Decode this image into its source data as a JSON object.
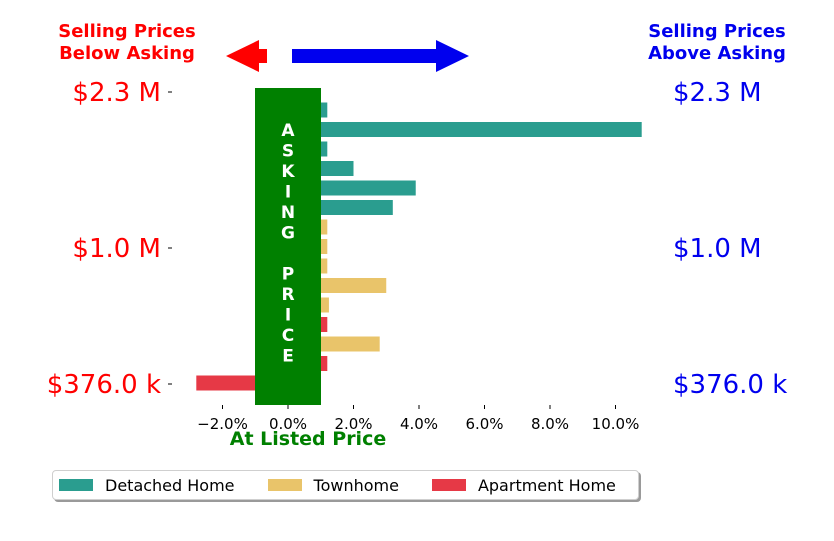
{
  "colors": {
    "detached": "#2a9d8f",
    "townhome": "#e9c46a",
    "apartment": "#e63946",
    "asking_band": "#008000",
    "below": "#ff0000",
    "above": "#0000ee"
  },
  "header": {
    "left": "Selling Prices\nBelow Asking",
    "right": "Selling Prices\nAbove Asking"
  },
  "arrows": {
    "left_icon": "arrow-left-icon",
    "right_icon": "arrow-right-icon"
  },
  "asking_band_label": "ASKING PRICE",
  "chart_data": {
    "type": "bar",
    "orientation": "horizontal",
    "title": "",
    "xlabel": "At Listed Price",
    "ylabel": "",
    "xlim": [
      -3.0,
      11.0
    ],
    "x_ticks": [
      -2,
      0,
      2,
      4,
      6,
      8,
      10
    ],
    "x_tick_labels": [
      "−2.0%",
      "0.0%",
      "2.0%",
      "4.0%",
      "6.0%",
      "8.0%",
      "10.0%"
    ],
    "y_ticks_left": [
      "$2.3 M",
      "$1.0 M",
      "$376.0 k"
    ],
    "y_ticks_right": [
      "$2.3 M",
      "$1.0 M",
      "$376.0 k"
    ],
    "grid": false,
    "legend_position": "bottom",
    "series": [
      {
        "name": "Detached Home",
        "bars": [
          1.2,
          10.8,
          1.2,
          2.0,
          3.9,
          3.2
        ]
      },
      {
        "name": "Townhome",
        "bars": [
          1.2,
          1.2,
          1.2,
          3.0,
          1.25,
          2.8
        ]
      },
      {
        "name": "Apartment Home",
        "bars": [
          1.2,
          1.2,
          -2.8
        ]
      }
    ],
    "bar_order": [
      {
        "series": 0,
        "value": 1.2
      },
      {
        "series": 0,
        "value": 10.8
      },
      {
        "series": 0,
        "value": 1.2
      },
      {
        "series": 0,
        "value": 2.0
      },
      {
        "series": 0,
        "value": 3.9
      },
      {
        "series": 0,
        "value": 3.2
      },
      {
        "series": 1,
        "value": 1.2
      },
      {
        "series": 1,
        "value": 1.2
      },
      {
        "series": 1,
        "value": 1.2
      },
      {
        "series": 1,
        "value": 3.0
      },
      {
        "series": 1,
        "value": 1.25
      },
      {
        "series": 2,
        "value": 1.2
      },
      {
        "series": 1,
        "value": 2.8
      },
      {
        "series": 2,
        "value": 1.2
      },
      {
        "series": 2,
        "value": -2.8
      }
    ]
  }
}
